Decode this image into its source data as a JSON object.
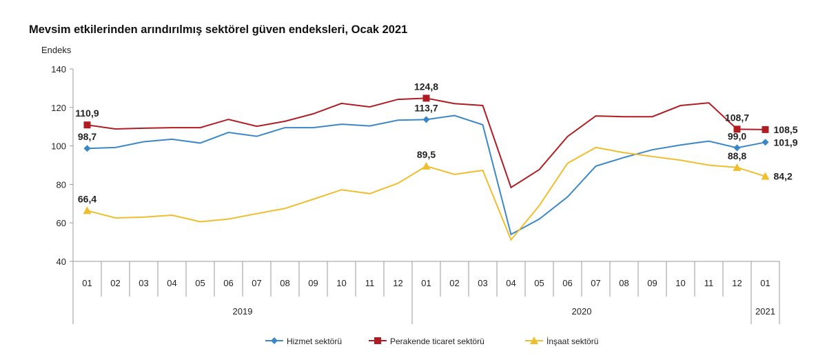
{
  "chart_data": {
    "type": "line",
    "title": "Mevsim etkilerinden arındırılmış sektörel güven endeksleri, Ocak 2021",
    "ylabel": "Endeks",
    "ylim": [
      40,
      140
    ],
    "yticks": [
      40,
      60,
      80,
      100,
      120,
      140
    ],
    "grid": false,
    "legend": "bottom",
    "categories": [
      "01",
      "02",
      "03",
      "04",
      "05",
      "06",
      "07",
      "08",
      "09",
      "10",
      "11",
      "12",
      "01",
      "02",
      "03",
      "04",
      "05",
      "06",
      "07",
      "08",
      "09",
      "10",
      "11",
      "12",
      "01"
    ],
    "years": [
      {
        "label": "2019",
        "span": 12
      },
      {
        "label": "2020",
        "span": 12
      },
      {
        "label": "2021",
        "span": 1
      }
    ],
    "series": [
      {
        "name": "Hizmet sektörü",
        "color": "#3a87c8",
        "marker": "diamond",
        "values": [
          98.7,
          99.2,
          102.2,
          103.5,
          101.5,
          107.0,
          105.0,
          109.5,
          109.5,
          111.3,
          110.4,
          113.4,
          113.7,
          115.8,
          111.0,
          54.0,
          62.0,
          73.5,
          89.5,
          94.0,
          98.0,
          100.5,
          102.5,
          99.0,
          101.9
        ],
        "labels": {
          "0": "98,7",
          "12": "113,7",
          "23": "99,0",
          "24": "101,9"
        }
      },
      {
        "name": "Perakende ticaret sektörü",
        "color": "#b01c22",
        "marker": "square",
        "values": [
          110.9,
          108.8,
          109.2,
          109.5,
          109.5,
          113.8,
          110.2,
          112.8,
          116.7,
          122.1,
          120.3,
          124.2,
          124.8,
          122.0,
          121.0,
          78.4,
          87.7,
          104.9,
          115.6,
          115.2,
          115.2,
          121.0,
          122.4,
          108.7,
          108.5
        ],
        "labels": {
          "0": "110,9",
          "12": "124,8",
          "23": "108,7",
          "24": "108,5"
        }
      },
      {
        "name": "İnşaat sektörü",
        "color": "#f0bd2c",
        "marker": "triangle",
        "values": [
          66.4,
          62.6,
          63.0,
          64.0,
          60.6,
          62.0,
          64.8,
          67.5,
          72.3,
          77.2,
          75.2,
          80.6,
          89.5,
          85.2,
          87.3,
          51.2,
          69.0,
          91.0,
          99.2,
          96.5,
          94.5,
          92.6,
          90.0,
          88.8,
          84.2
        ],
        "labels": {
          "0": "66,4",
          "12": "89,5",
          "23": "88,8",
          "24": "84,2"
        }
      }
    ]
  }
}
